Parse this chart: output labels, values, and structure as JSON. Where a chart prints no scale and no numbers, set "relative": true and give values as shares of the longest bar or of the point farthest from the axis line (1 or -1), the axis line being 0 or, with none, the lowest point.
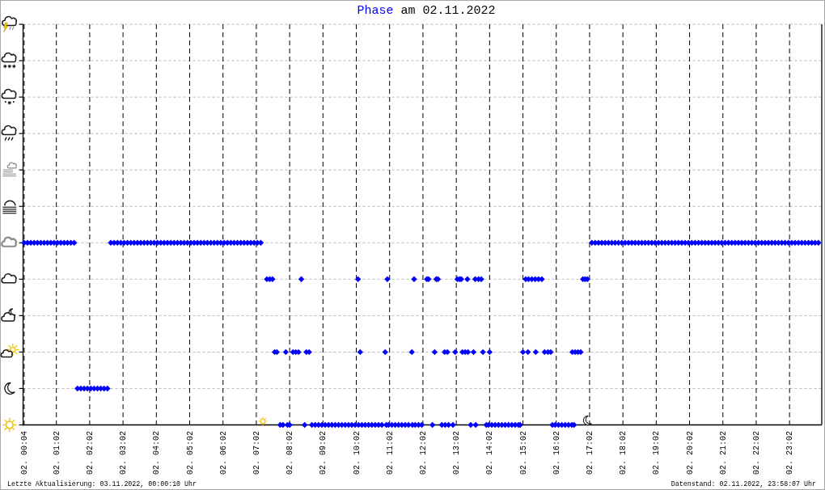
{
  "chart_data": {
    "type": "scatter",
    "title": "Phase am 02.11.2022",
    "relative": true,
    "x": [
      "2022-11-02T00:04",
      "2022-11-02T00:10",
      "2022-11-02T00:16",
      "2022-11-02T00:22",
      "2022-11-02T00:28",
      "2022-11-02T00:34",
      "2022-11-02T00:40",
      "2022-11-02T00:46",
      "2022-11-02T00:52",
      "2022-11-02T00:58",
      "2022-11-02T01:04",
      "2022-11-02T01:10",
      "2022-11-02T01:16",
      "2022-11-02T01:22",
      "2022-11-02T01:28",
      "2022-11-02T01:34",
      "2022-11-02T01:40",
      "2022-11-02T01:46",
      "2022-11-02T01:52",
      "2022-11-02T01:58",
      "2022-11-02T02:04",
      "2022-11-02T02:10",
      "2022-11-02T02:16",
      "2022-11-02T02:22",
      "2022-11-02T02:28",
      "2022-11-02T02:34",
      "2022-11-02T02:40",
      "2022-11-02T02:46",
      "2022-11-02T02:52",
      "2022-11-02T02:58",
      "2022-11-02T03:04",
      "2022-11-02T03:10",
      "2022-11-02T03:16",
      "2022-11-02T03:22",
      "2022-11-02T03:28",
      "2022-11-02T03:34",
      "2022-11-02T03:40",
      "2022-11-02T03:46",
      "2022-11-02T03:52",
      "2022-11-02T03:58",
      "2022-11-02T04:04",
      "2022-11-02T04:10",
      "2022-11-02T04:16",
      "2022-11-02T04:22",
      "2022-11-02T04:28",
      "2022-11-02T04:34",
      "2022-11-02T04:40",
      "2022-11-02T04:46",
      "2022-11-02T04:52",
      "2022-11-02T04:58",
      "2022-11-02T05:04",
      "2022-11-02T05:10",
      "2022-11-02T05:16",
      "2022-11-02T05:22",
      "2022-11-02T05:28",
      "2022-11-02T05:34",
      "2022-11-02T05:40",
      "2022-11-02T05:46",
      "2022-11-02T05:52",
      "2022-11-02T05:58",
      "2022-11-02T06:04",
      "2022-11-02T06:10",
      "2022-11-02T06:16",
      "2022-11-02T06:22",
      "2022-11-02T06:28",
      "2022-11-02T06:34",
      "2022-11-02T06:40",
      "2022-11-02T06:46",
      "2022-11-02T06:52",
      "2022-11-02T06:58",
      "2022-11-02T07:04",
      "2022-11-02T07:10",
      "2022-11-02T07:21",
      "2022-11-02T07:26",
      "2022-11-02T07:31",
      "2022-11-02T07:35",
      "2022-11-02T07:39",
      "2022-11-02T07:45",
      "2022-11-02T07:50",
      "2022-11-02T07:55",
      "2022-11-02T07:58",
      "2022-11-02T08:02",
      "2022-11-02T08:08",
      "2022-11-02T08:13",
      "2022-11-02T08:18",
      "2022-11-02T08:23",
      "2022-11-02T08:29",
      "2022-11-02T08:32",
      "2022-11-02T08:37",
      "2022-11-02T08:42",
      "2022-11-02T08:48",
      "2022-11-02T08:54",
      "2022-11-02T09:00",
      "2022-11-02T09:06",
      "2022-11-02T09:12",
      "2022-11-02T09:18",
      "2022-11-02T09:24",
      "2022-11-02T09:30",
      "2022-11-02T09:36",
      "2022-11-02T09:42",
      "2022-11-02T09:48",
      "2022-11-02T09:54",
      "2022-11-02T10:00",
      "2022-11-02T10:05",
      "2022-11-02T10:06",
      "2022-11-02T10:09",
      "2022-11-02T10:12",
      "2022-11-02T10:18",
      "2022-11-02T10:24",
      "2022-11-02T10:30",
      "2022-11-02T10:36",
      "2022-11-02T10:42",
      "2022-11-02T10:48",
      "2022-11-02T10:54",
      "2022-11-02T10:56",
      "2022-11-02T10:58",
      "2022-11-02T11:00",
      "2022-11-02T11:06",
      "2022-11-02T11:12",
      "2022-11-02T11:18",
      "2022-11-02T11:24",
      "2022-11-02T11:30",
      "2022-11-02T11:36",
      "2022-11-02T11:42",
      "2022-11-02T11:43",
      "2022-11-02T11:46",
      "2022-11-02T11:48",
      "2022-11-02T11:54",
      "2022-11-02T12:00",
      "2022-11-02T12:09",
      "2022-11-02T12:12",
      "2022-11-02T12:19",
      "2022-11-02T12:23",
      "2022-11-02T12:26",
      "2022-11-02T12:29",
      "2022-11-02T12:36",
      "2022-11-02T12:41",
      "2022-11-02T12:42",
      "2022-11-02T12:46",
      "2022-11-02T12:48",
      "2022-11-02T12:56",
      "2022-11-02T13:00",
      "2022-11-02T13:04",
      "2022-11-02T13:08",
      "2022-11-02T13:11",
      "2022-11-02T13:13",
      "2022-11-02T13:18",
      "2022-11-02T13:22",
      "2022-11-02T13:23",
      "2022-11-02T13:28",
      "2022-11-02T13:33",
      "2022-11-02T13:36",
      "2022-11-02T13:37",
      "2022-11-02T13:42",
      "2022-11-02T13:47",
      "2022-11-02T13:50",
      "2022-11-02T13:56",
      "2022-11-02T14:00",
      "2022-11-02T14:02",
      "2022-11-02T14:06",
      "2022-11-02T14:12",
      "2022-11-02T14:18",
      "2022-11-02T14:24",
      "2022-11-02T14:30",
      "2022-11-02T14:36",
      "2022-11-02T14:42",
      "2022-11-02T14:48",
      "2022-11-02T14:54",
      "2022-11-02T14:57",
      "2022-11-02T15:02",
      "2022-11-02T15:07",
      "2022-11-02T15:11",
      "2022-11-02T15:12",
      "2022-11-02T15:18",
      "2022-11-02T15:24",
      "2022-11-02T15:25",
      "2022-11-02T15:30",
      "2022-11-02T15:36",
      "2022-11-02T15:41",
      "2022-11-02T15:47",
      "2022-11-02T15:52",
      "2022-11-02T15:55",
      "2022-11-02T16:00",
      "2022-11-02T16:06",
      "2022-11-02T16:12",
      "2022-11-02T16:18",
      "2022-11-02T16:24",
      "2022-11-02T16:30",
      "2022-11-02T16:31",
      "2022-11-02T16:34",
      "2022-11-02T16:36",
      "2022-11-02T16:41",
      "2022-11-02T16:46",
      "2022-11-02T16:50",
      "2022-11-02T16:54",
      "2022-11-02T16:58",
      "2022-11-02T17:06",
      "2022-11-02T17:12",
      "2022-11-02T17:18",
      "2022-11-02T17:24",
      "2022-11-02T17:30",
      "2022-11-02T17:36",
      "2022-11-02T17:42",
      "2022-11-02T17:48",
      "2022-11-02T17:54",
      "2022-11-02T18:00",
      "2022-11-02T18:06",
      "2022-11-02T18:12",
      "2022-11-02T18:18",
      "2022-11-02T18:24",
      "2022-11-02T18:30",
      "2022-11-02T18:36",
      "2022-11-02T18:42",
      "2022-11-02T18:48",
      "2022-11-02T18:54",
      "2022-11-02T19:00",
      "2022-11-02T19:06",
      "2022-11-02T19:12",
      "2022-11-02T19:18",
      "2022-11-02T19:24",
      "2022-11-02T19:30",
      "2022-11-02T19:36",
      "2022-11-02T19:42",
      "2022-11-02T19:48",
      "2022-11-02T19:54",
      "2022-11-02T20:00",
      "2022-11-02T20:06",
      "2022-11-02T20:12",
      "2022-11-02T20:18",
      "2022-11-02T20:24",
      "2022-11-02T20:30",
      "2022-11-02T20:36",
      "2022-11-02T20:42",
      "2022-11-02T20:48",
      "2022-11-02T20:54",
      "2022-11-02T21:00",
      "2022-11-02T21:06",
      "2022-11-02T21:12",
      "2022-11-02T21:18",
      "2022-11-02T21:24",
      "2022-11-02T21:30",
      "2022-11-02T21:36",
      "2022-11-02T21:42",
      "2022-11-02T21:48",
      "2022-11-02T21:54",
      "2022-11-02T22:00",
      "2022-11-02T22:06",
      "2022-11-02T22:12",
      "2022-11-02T22:18",
      "2022-11-02T22:24",
      "2022-11-02T22:30",
      "2022-11-02T22:36",
      "2022-11-02T22:42",
      "2022-11-02T22:48",
      "2022-11-02T22:54",
      "2022-11-02T23:00",
      "2022-11-02T23:06",
      "2022-11-02T23:12",
      "2022-11-02T23:18",
      "2022-11-02T23:24",
      "2022-11-02T23:30",
      "2022-11-02T23:36",
      "2022-11-02T23:42",
      "2022-11-02T23:48",
      "2022-11-02T23:54"
    ],
    "values": [
      1,
      1,
      1,
      1,
      1,
      1,
      1,
      1,
      1,
      1,
      1,
      1,
      1,
      1,
      1,
      1,
      0.2,
      0.2,
      0.2,
      0.2,
      0.2,
      0.2,
      0.2,
      0.2,
      0.2,
      0.2,
      1,
      1,
      1,
      1,
      1,
      1,
      1,
      1,
      1,
      1,
      1,
      1,
      1,
      1,
      1,
      1,
      1,
      1,
      1,
      1,
      1,
      1,
      1,
      1,
      1,
      1,
      1,
      1,
      1,
      1,
      1,
      1,
      1,
      1,
      1,
      1,
      1,
      1,
      1,
      1,
      1,
      1,
      1,
      1,
      1,
      1,
      0.8,
      0.8,
      0.8,
      0.4,
      0.4,
      0,
      0,
      0.4,
      0,
      0,
      0.4,
      0.4,
      0.4,
      0.8,
      0,
      0.4,
      0.4,
      0,
      0,
      0,
      0,
      0,
      0,
      0,
      0,
      0,
      0,
      0,
      0,
      0,
      0,
      0.8,
      0,
      0.4,
      0,
      0,
      0,
      0,
      0,
      0,
      0,
      0.4,
      0,
      0.8,
      0,
      0,
      0,
      0,
      0,
      0,
      0,
      0.4,
      0,
      0.8,
      0,
      0,
      0,
      0.8,
      0.8,
      0,
      0.4,
      0.8,
      0.8,
      0,
      0.4,
      0,
      0.4,
      0,
      0,
      0.4,
      0.8,
      0.8,
      0.8,
      0.4,
      0.4,
      0.8,
      0.4,
      0,
      0.4,
      0.8,
      0,
      0.8,
      0.8,
      0.4,
      0,
      0,
      0.4,
      0,
      0,
      0,
      0,
      0,
      0,
      0,
      0,
      0,
      0,
      0.4,
      0.8,
      0.4,
      0.8,
      0.8,
      0.8,
      0.4,
      0.8,
      0.8,
      0.4,
      0.4,
      0.4,
      0,
      0,
      0,
      0,
      0,
      0,
      0,
      0.4,
      0,
      0.4,
      0.4,
      0.4,
      0.8,
      0.8,
      0.8,
      1,
      1,
      1,
      1,
      1,
      1,
      1,
      1,
      1,
      1,
      1,
      1,
      1,
      1,
      1,
      1,
      1,
      1,
      1,
      1,
      1,
      1,
      1,
      1,
      1,
      1,
      1,
      1,
      1,
      1,
      1,
      1,
      1,
      1,
      1,
      1,
      1,
      1,
      1,
      1,
      1,
      1,
      1,
      1,
      1,
      1,
      1,
      1,
      1,
      1,
      1,
      1,
      1,
      1,
      1,
      1,
      1,
      1,
      1,
      1,
      1,
      1,
      1,
      1,
      1,
      1,
      1,
      1,
      1
    ],
    "color": "#0000ff",
    "marker": "diamond",
    "xlim": [
      "2022-11-02T00:02",
      "2022-11-03T00:00"
    ],
    "xticks": [
      {
        "value": "2022-11-02T00:04",
        "label": "02. 00:04"
      },
      {
        "value": "2022-11-02T01:02",
        "label": "02. 01:02"
      },
      {
        "value": "2022-11-02T02:02",
        "label": "02. 02:02"
      },
      {
        "value": "2022-11-02T03:02",
        "label": "02. 03:02"
      },
      {
        "value": "2022-11-02T04:02",
        "label": "02. 04:02"
      },
      {
        "value": "2022-11-02T05:02",
        "label": "02. 05:02"
      },
      {
        "value": "2022-11-02T06:02",
        "label": "02. 06:02"
      },
      {
        "value": "2022-11-02T07:02",
        "label": "02. 07:02"
      },
      {
        "value": "2022-11-02T08:02",
        "label": "02. 08:02"
      },
      {
        "value": "2022-11-02T09:02",
        "label": "02. 09:02"
      },
      {
        "value": "2022-11-02T10:02",
        "label": "02. 10:02"
      },
      {
        "value": "2022-11-02T11:02",
        "label": "02. 11:02"
      },
      {
        "value": "2022-11-02T12:02",
        "label": "02. 12:02"
      },
      {
        "value": "2022-11-02T13:02",
        "label": "02. 13:02"
      },
      {
        "value": "2022-11-02T14:02",
        "label": "02. 14:02"
      },
      {
        "value": "2022-11-02T15:02",
        "label": "02. 15:02"
      },
      {
        "value": "2022-11-02T16:02",
        "label": "02. 16:02"
      },
      {
        "value": "2022-11-02T17:02",
        "label": "02. 17:02"
      },
      {
        "value": "2022-11-02T18:02",
        "label": "02. 18:02"
      },
      {
        "value": "2022-11-02T19:02",
        "label": "02. 19:02"
      },
      {
        "value": "2022-11-02T20:02",
        "label": "02. 20:02"
      },
      {
        "value": "2022-11-02T21:02",
        "label": "02. 21:02"
      },
      {
        "value": "2022-11-02T22:02",
        "label": "02. 22:02"
      },
      {
        "value": "2022-11-02T23:02",
        "label": "02. 23:02"
      }
    ],
    "grid": true,
    "annotations": [
      "Letzte Aktualisierung: 03.11.2022, 00:00:10 Uhr",
      "Datenstand: 02.11.2022, 23:58:07 Uhr"
    ]
  }
}
